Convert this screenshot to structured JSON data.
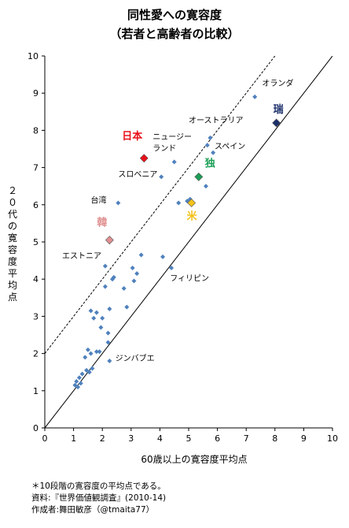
{
  "chart_data": {
    "type": "scatter",
    "title": "同性愛への寛容度",
    "subtitle": "（若者と高齢者の比較）",
    "xlabel": "60歳以上の寛容度平均点",
    "ylabel": "２０代の寛容度平均点",
    "xlim": [
      0,
      10
    ],
    "ylim": [
      0,
      10
    ],
    "xticks": [
      "0",
      "1",
      "2",
      "3",
      "4",
      "5",
      "6",
      "7",
      "8",
      "9",
      "10"
    ],
    "yticks": [
      "0",
      "1",
      "2",
      "3",
      "4",
      "5",
      "6",
      "7",
      "8",
      "9",
      "10"
    ],
    "grid": false,
    "reference_lines": [
      {
        "style": "solid",
        "x": [
          0.0,
          10.0
        ],
        "y": [
          0.0,
          10.0
        ]
      },
      {
        "style": "dashed",
        "x": [
          0.0,
          8.0
        ],
        "y": [
          2.0,
          10.0
        ]
      }
    ],
    "points": [
      {
        "x": 1.05,
        "y": 1.15
      },
      {
        "x": 1.1,
        "y": 1.25
      },
      {
        "x": 1.15,
        "y": 1.1
      },
      {
        "x": 1.2,
        "y": 1.35
      },
      {
        "x": 1.25,
        "y": 1.2
      },
      {
        "x": 1.3,
        "y": 1.45
      },
      {
        "x": 1.4,
        "y": 1.9
      },
      {
        "x": 1.45,
        "y": 1.55
      },
      {
        "x": 1.5,
        "y": 2.1
      },
      {
        "x": 1.55,
        "y": 1.5
      },
      {
        "x": 1.6,
        "y": 2.0
      },
      {
        "x": 1.65,
        "y": 1.6
      },
      {
        "x": 1.6,
        "y": 3.15
      },
      {
        "x": 1.7,
        "y": 2.95
      },
      {
        "x": 1.8,
        "y": 3.1
      },
      {
        "x": 1.8,
        "y": 2.05
      },
      {
        "x": 1.9,
        "y": 2.05
      },
      {
        "x": 1.95,
        "y": 2.7
      },
      {
        "x": 2.0,
        "y": 2.95
      },
      {
        "x": 2.1,
        "y": 4.35
      },
      {
        "x": 2.1,
        "y": 3.8
      },
      {
        "x": 2.2,
        "y": 2.3
      },
      {
        "x": 2.2,
        "y": 2.55
      },
      {
        "x": 2.25,
        "y": 3.2
      },
      {
        "x": 2.25,
        "y": 1.8
      },
      {
        "x": 2.35,
        "y": 4.0
      },
      {
        "x": 2.4,
        "y": 4.05
      },
      {
        "x": 2.55,
        "y": 6.05
      },
      {
        "x": 2.75,
        "y": 3.75
      },
      {
        "x": 2.85,
        "y": 3.25
      },
      {
        "x": 3.05,
        "y": 4.3
      },
      {
        "x": 3.1,
        "y": 3.95
      },
      {
        "x": 3.2,
        "y": 4.15
      },
      {
        "x": 3.35,
        "y": 4.65
      },
      {
        "x": 4.05,
        "y": 6.75
      },
      {
        "x": 4.1,
        "y": 4.6
      },
      {
        "x": 4.4,
        "y": 4.3
      },
      {
        "x": 4.5,
        "y": 7.15
      },
      {
        "x": 4.65,
        "y": 6.05
      },
      {
        "x": 4.95,
        "y": 6.1
      },
      {
        "x": 5.05,
        "y": 6.15
      },
      {
        "x": 5.6,
        "y": 6.5
      },
      {
        "x": 5.65,
        "y": 7.6
      },
      {
        "x": 5.75,
        "y": 7.8
      },
      {
        "x": 5.85,
        "y": 7.4
      },
      {
        "x": 7.3,
        "y": 8.9
      }
    ],
    "highlighted": [
      {
        "label": "日本",
        "x": 3.45,
        "y": 7.25,
        "color": "#e8101a"
      },
      {
        "label": "韓",
        "x": 2.25,
        "y": 5.05,
        "color": "#e09090"
      },
      {
        "label": "独",
        "x": 5.35,
        "y": 6.75,
        "color": "#1a9e55"
      },
      {
        "label": "米",
        "x": 5.1,
        "y": 6.05,
        "color": "#f2c21a"
      },
      {
        "label": "瑞",
        "x": 8.05,
        "y": 8.2,
        "color": "#1c2f6b"
      }
    ],
    "annotations": [
      {
        "text": "オランダ",
        "x": 7.55,
        "y": 9.2
      },
      {
        "text": "オーストラリア",
        "x": 5.0,
        "y": 8.2
      },
      {
        "text": "ニュージー",
        "x": 3.75,
        "y": 7.75
      },
      {
        "text": "ランド",
        "x": 3.75,
        "y": 7.45
      },
      {
        "text": "スペイン",
        "x": 5.9,
        "y": 7.5
      },
      {
        "text": "スロベニア",
        "x": 2.55,
        "y": 6.75
      },
      {
        "text": "台湾",
        "x": 1.6,
        "y": 6.05
      },
      {
        "text": "エストニア",
        "x": 0.6,
        "y": 4.55
      },
      {
        "text": "フィリピン",
        "x": 4.35,
        "y": 3.95
      },
      {
        "text": "ジンバブエ",
        "x": 2.45,
        "y": 1.8
      }
    ],
    "colors": {
      "point": "#4f81bd"
    }
  },
  "notes": [
    "＊10段階の寛容度の平均点である。",
    "資料:『世界価値観調査』(2010-14)",
    "作成者:舞田敏彦（@tmaita77）"
  ]
}
